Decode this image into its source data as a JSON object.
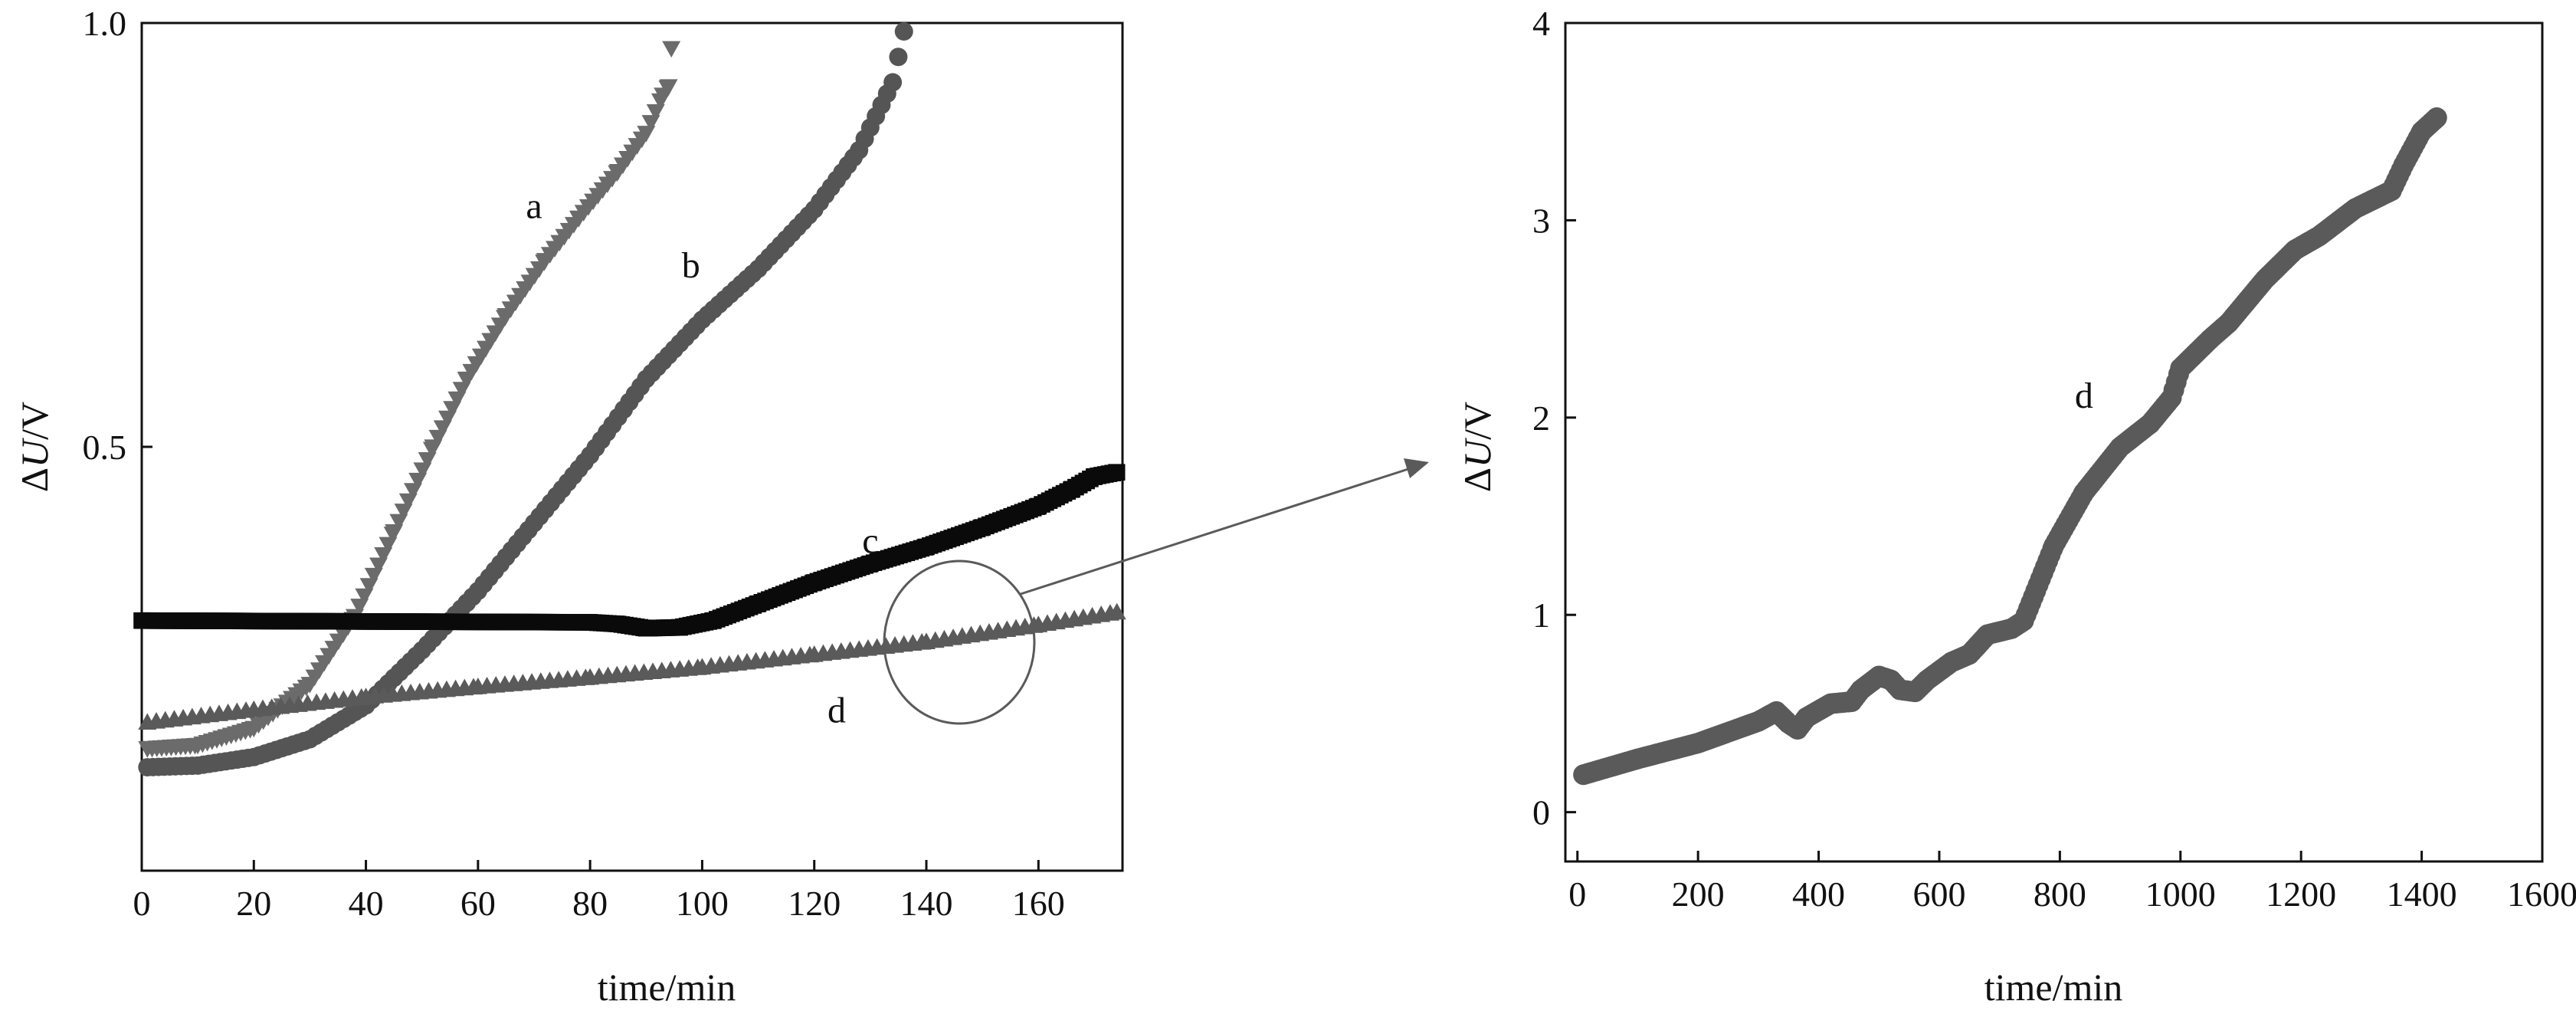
{
  "colors": {
    "background": "#ffffff",
    "axis": "#111111",
    "series_a": "#6b6b6b",
    "series_b": "#555555",
    "series_c": "#0a0a0a",
    "series_d": "#5a5a5a",
    "annotation": "#5a5a5a"
  },
  "chart_data": [
    {
      "type": "scatter",
      "xlabel": "time/min",
      "ylabel_prefix": "Δ",
      "ylabel_var": "U",
      "ylabel_suffix": "/V",
      "xlim": [
        0,
        175
      ],
      "ylim": [
        0.0,
        1.0
      ],
      "xticks": [
        0,
        20,
        40,
        60,
        80,
        100,
        120,
        140,
        160
      ],
      "xtick_labels": [
        "0",
        "20",
        "40",
        "60",
        "80",
        "100",
        "120",
        "140",
        "160"
      ],
      "yticks": [
        0.5,
        1.0
      ],
      "ytick_labels": [
        "0.5",
        "1.0"
      ],
      "series": [
        {
          "name": "a",
          "marker": "triangle-down",
          "step": 0.85,
          "points": [
            [
              1,
              0.144
            ],
            [
              10,
              0.148
            ],
            [
              20,
              0.168
            ],
            [
              30,
              0.22
            ],
            [
              38,
              0.3
            ],
            [
              45,
              0.4
            ],
            [
              52,
              0.5
            ],
            [
              58,
              0.58
            ],
            [
              65,
              0.655
            ],
            [
              72,
              0.72
            ],
            [
              78,
              0.77
            ],
            [
              85,
              0.825
            ],
            [
              90,
              0.87
            ],
            [
              93,
              0.915
            ],
            [
              94,
              0.925
            ],
            [
              94.5,
              0.97
            ]
          ]
        },
        {
          "name": "b",
          "marker": "circle",
          "step": 1.0,
          "points": [
            [
              1,
              0.122
            ],
            [
              10,
              0.124
            ],
            [
              20,
              0.134
            ],
            [
              30,
              0.155
            ],
            [
              40,
              0.195
            ],
            [
              50,
              0.26
            ],
            [
              60,
              0.33
            ],
            [
              70,
              0.41
            ],
            [
              80,
              0.49
            ],
            [
              90,
              0.58
            ],
            [
              100,
              0.65
            ],
            [
              105,
              0.68
            ],
            [
              110,
              0.71
            ],
            [
              120,
              0.78
            ],
            [
              128,
              0.85
            ],
            [
              134,
              0.93
            ],
            [
              136,
              0.99
            ]
          ]
        },
        {
          "name": "c",
          "marker": "square",
          "step": 0.65,
          "points": [
            [
              0,
              0.295
            ],
            [
              40,
              0.294
            ],
            [
              80,
              0.293
            ],
            [
              85,
              0.291
            ],
            [
              90,
              0.286
            ],
            [
              96,
              0.287
            ],
            [
              102,
              0.295
            ],
            [
              110,
              0.315
            ],
            [
              120,
              0.34
            ],
            [
              130,
              0.362
            ],
            [
              140,
              0.382
            ],
            [
              150,
              0.405
            ],
            [
              160,
              0.43
            ],
            [
              166,
              0.45
            ],
            [
              170,
              0.465
            ],
            [
              174,
              0.47
            ]
          ]
        },
        {
          "name": "d",
          "marker": "triangle-up",
          "step": 1.6,
          "points": [
            [
              1,
              0.175
            ],
            [
              20,
              0.19
            ],
            [
              40,
              0.205
            ],
            [
              60,
              0.217
            ],
            [
              80,
              0.228
            ],
            [
              100,
              0.24
            ],
            [
              120,
              0.255
            ],
            [
              140,
              0.27
            ],
            [
              160,
              0.29
            ],
            [
              174,
              0.305
            ]
          ]
        }
      ],
      "curve_labels": [
        {
          "text": "a",
          "x": 70,
          "y": 0.77
        },
        {
          "text": "b",
          "x": 98,
          "y": 0.7
        },
        {
          "text": "c",
          "x": 130,
          "y": 0.375
        },
        {
          "text": "d",
          "x": 124,
          "y": 0.175
        }
      ]
    },
    {
      "type": "scatter",
      "xlabel": "time/min",
      "ylabel_prefix": "Δ",
      "ylabel_var": "U",
      "ylabel_suffix": "/V",
      "xlim": [
        -20,
        1600
      ],
      "ylim": [
        -0.25,
        4.0
      ],
      "xticks": [
        0,
        200,
        400,
        600,
        800,
        1000,
        1200,
        1400,
        1600
      ],
      "xtick_labels": [
        "0",
        "200",
        "400",
        "600",
        "800",
        "1000",
        "1200",
        "1400",
        "1600"
      ],
      "yticks": [
        0,
        1,
        2,
        3,
        4
      ],
      "ytick_labels": [
        "0",
        "1",
        "2",
        "3",
        "4"
      ],
      "series": [
        {
          "name": "d",
          "marker": "circle",
          "step": 4,
          "points": [
            [
              10,
              0.19
            ],
            [
              100,
              0.27
            ],
            [
              200,
              0.35
            ],
            [
              300,
              0.46
            ],
            [
              330,
              0.51
            ],
            [
              350,
              0.45
            ],
            [
              365,
              0.42
            ],
            [
              380,
              0.48
            ],
            [
              420,
              0.55
            ],
            [
              455,
              0.56
            ],
            [
              470,
              0.62
            ],
            [
              500,
              0.69
            ],
            [
              520,
              0.67
            ],
            [
              535,
              0.62
            ],
            [
              560,
              0.61
            ],
            [
              580,
              0.67
            ],
            [
              620,
              0.76
            ],
            [
              650,
              0.8
            ],
            [
              665,
              0.85
            ],
            [
              680,
              0.9
            ],
            [
              720,
              0.93
            ],
            [
              740,
              0.97
            ],
            [
              790,
              1.35
            ],
            [
              840,
              1.62
            ],
            [
              900,
              1.85
            ],
            [
              950,
              1.97
            ],
            [
              985,
              2.1
            ],
            [
              1000,
              2.25
            ],
            [
              1050,
              2.4
            ],
            [
              1080,
              2.48
            ],
            [
              1140,
              2.7
            ],
            [
              1190,
              2.85
            ],
            [
              1230,
              2.92
            ],
            [
              1290,
              3.06
            ],
            [
              1350,
              3.15
            ],
            [
              1370,
              3.28
            ],
            [
              1400,
              3.45
            ],
            [
              1425,
              3.52
            ]
          ]
        }
      ],
      "curve_labels": [
        {
          "text": "d",
          "x": 840,
          "y": 2.05
        }
      ]
    }
  ]
}
